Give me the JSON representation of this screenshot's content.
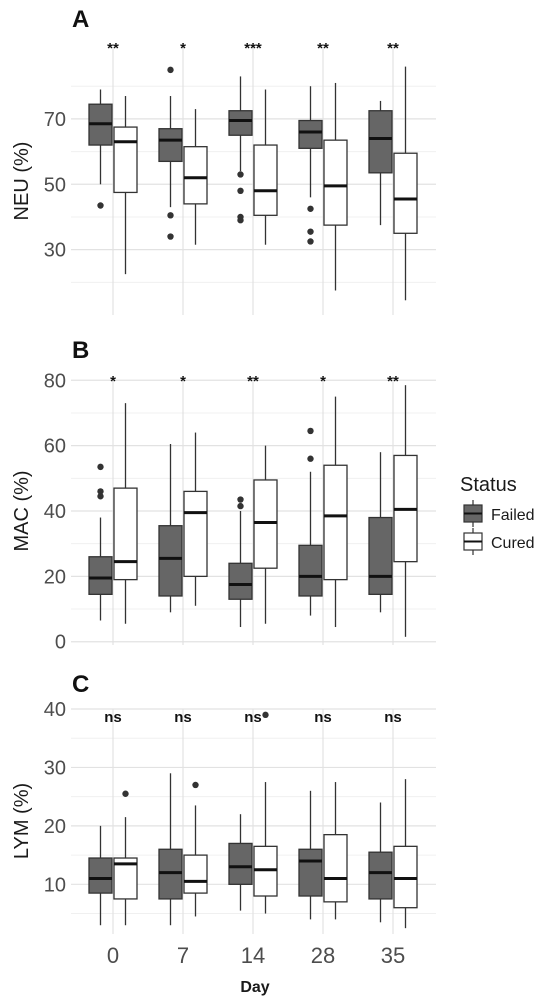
{
  "legend": {
    "title": "Status",
    "items": [
      {
        "label": "Failed",
        "color": "#666666"
      },
      {
        "label": "Cured",
        "color": "#ffffff"
      }
    ]
  },
  "x_axis_label": "Day",
  "chart_data": [
    {
      "panel": "A",
      "type": "boxplot",
      "ylabel": "NEU (%)",
      "ylim": [
        10,
        92
      ],
      "yticks": [
        30,
        50,
        70
      ],
      "ygrid_minor": [
        20,
        40,
        60,
        80
      ],
      "categories": [
        "0",
        "7",
        "14",
        "28",
        "35"
      ],
      "significance": [
        "**",
        "*",
        "***",
        "**",
        "**"
      ],
      "series": [
        {
          "name": "Failed",
          "boxes": [
            {
              "whisker_low": 50,
              "q1": 62,
              "median": 68.5,
              "q3": 74.5,
              "whisker_high": 79,
              "outliers": [
                43.5
              ]
            },
            {
              "whisker_low": 43,
              "q1": 57,
              "median": 63.5,
              "q3": 67,
              "whisker_high": 77,
              "outliers": [
                85,
                40.5,
                34
              ]
            },
            {
              "whisker_low": 54,
              "q1": 65,
              "median": 69.5,
              "q3": 72.5,
              "whisker_high": 83,
              "outliers": [
                53,
                48,
                40,
                39
              ]
            },
            {
              "whisker_low": 46,
              "q1": 61,
              "median": 66,
              "q3": 69.5,
              "whisker_high": 80,
              "outliers": [
                42.5,
                35.5,
                32.5
              ]
            },
            {
              "whisker_low": 37.5,
              "q1": 53.5,
              "median": 64,
              "q3": 72.5,
              "whisker_high": 75.5,
              "outliers": []
            }
          ]
        },
        {
          "name": "Cured",
          "boxes": [
            {
              "whisker_low": 22.5,
              "q1": 47.5,
              "median": 63,
              "q3": 67.5,
              "whisker_high": 77,
              "outliers": []
            },
            {
              "whisker_low": 31.5,
              "q1": 44,
              "median": 52,
              "q3": 61.5,
              "whisker_high": 73,
              "outliers": []
            },
            {
              "whisker_low": 31.5,
              "q1": 40.5,
              "median": 48,
              "q3": 62,
              "whisker_high": 79,
              "outliers": []
            },
            {
              "whisker_low": 17.5,
              "q1": 37.5,
              "median": 49.5,
              "q3": 63.5,
              "whisker_high": 81,
              "outliers": []
            },
            {
              "whisker_low": 14.5,
              "q1": 35,
              "median": 45.5,
              "q3": 59.5,
              "whisker_high": 86,
              "outliers": []
            }
          ]
        }
      ]
    },
    {
      "panel": "B",
      "type": "boxplot",
      "ylabel": "MAC (%)",
      "ylim": [
        -1,
        81
      ],
      "yticks": [
        0,
        20,
        40,
        60,
        80
      ],
      "ygrid_minor": [
        10,
        30,
        50,
        70
      ],
      "categories": [
        "0",
        "7",
        "14",
        "28",
        "35"
      ],
      "significance": [
        "*",
        "*",
        "**",
        "*",
        "**"
      ],
      "series": [
        {
          "name": "Failed",
          "boxes": [
            {
              "whisker_low": 6.5,
              "q1": 14.5,
              "median": 19.5,
              "q3": 26,
              "whisker_high": 38,
              "outliers": [
                53.5,
                46,
                44.5
              ]
            },
            {
              "whisker_low": 9,
              "q1": 14,
              "median": 25.5,
              "q3": 35.5,
              "whisker_high": 60.5,
              "outliers": []
            },
            {
              "whisker_low": 4.5,
              "q1": 13,
              "median": 17.5,
              "q3": 24,
              "whisker_high": 40,
              "outliers": [
                43.5,
                41.5
              ]
            },
            {
              "whisker_low": 8,
              "q1": 14,
              "median": 20,
              "q3": 29.5,
              "whisker_high": 52,
              "outliers": [
                64.5,
                56
              ]
            },
            {
              "whisker_low": 9,
              "q1": 14.5,
              "median": 20,
              "q3": 38,
              "whisker_high": 58,
              "outliers": []
            }
          ]
        },
        {
          "name": "Cured",
          "boxes": [
            {
              "whisker_low": 5.5,
              "q1": 19,
              "median": 24.5,
              "q3": 47,
              "whisker_high": 73,
              "outliers": []
            },
            {
              "whisker_low": 11,
              "q1": 20,
              "median": 39.5,
              "q3": 46,
              "whisker_high": 64,
              "outliers": []
            },
            {
              "whisker_low": 5.5,
              "q1": 22.5,
              "median": 36.5,
              "q3": 49.5,
              "whisker_high": 60,
              "outliers": []
            },
            {
              "whisker_low": 4.5,
              "q1": 19,
              "median": 38.5,
              "q3": 54,
              "whisker_high": 75,
              "outliers": []
            },
            {
              "whisker_low": 1.5,
              "q1": 24.5,
              "median": 40.5,
              "q3": 57,
              "whisker_high": 78.5,
              "outliers": []
            }
          ]
        }
      ]
    },
    {
      "panel": "C",
      "type": "boxplot",
      "ylabel": "LYM (%)",
      "ylim": [
        1.5,
        40
      ],
      "yticks": [
        10,
        20,
        30,
        40
      ],
      "ygrid_minor": [
        5,
        15,
        25,
        35
      ],
      "categories": [
        "0",
        "7",
        "14",
        "28",
        "35"
      ],
      "significance": [
        "ns",
        "ns",
        "ns",
        "ns",
        "ns"
      ],
      "series": [
        {
          "name": "Failed",
          "boxes": [
            {
              "whisker_low": 3,
              "q1": 8.5,
              "median": 11,
              "q3": 14.5,
              "whisker_high": 20,
              "outliers": []
            },
            {
              "whisker_low": 3,
              "q1": 7.5,
              "median": 12,
              "q3": 16,
              "whisker_high": 29,
              "outliers": []
            },
            {
              "whisker_low": 5.5,
              "q1": 10,
              "median": 13,
              "q3": 17,
              "whisker_high": 22,
              "outliers": []
            },
            {
              "whisker_low": 4,
              "q1": 8,
              "median": 14,
              "q3": 16,
              "whisker_high": 26,
              "outliers": []
            },
            {
              "whisker_low": 3.5,
              "q1": 7.5,
              "median": 12,
              "q3": 15.5,
              "whisker_high": 24,
              "outliers": []
            }
          ]
        },
        {
          "name": "Cured",
          "boxes": [
            {
              "whisker_low": 3,
              "q1": 7.5,
              "median": 13.5,
              "q3": 14.5,
              "whisker_high": 21.5,
              "outliers": [
                25.5
              ]
            },
            {
              "whisker_low": 4.5,
              "q1": 8.5,
              "median": 10.5,
              "q3": 15,
              "whisker_high": 23.5,
              "outliers": [
                27
              ]
            },
            {
              "whisker_low": 5,
              "q1": 8,
              "median": 12.5,
              "q3": 16.5,
              "whisker_high": 27.5,
              "outliers": [
                39
              ]
            },
            {
              "whisker_low": 4,
              "q1": 7,
              "median": 11,
              "q3": 18.5,
              "whisker_high": 27.5,
              "outliers": []
            },
            {
              "whisker_low": 2.5,
              "q1": 6,
              "median": 11,
              "q3": 16.5,
              "whisker_high": 28,
              "outliers": []
            }
          ]
        }
      ]
    }
  ]
}
